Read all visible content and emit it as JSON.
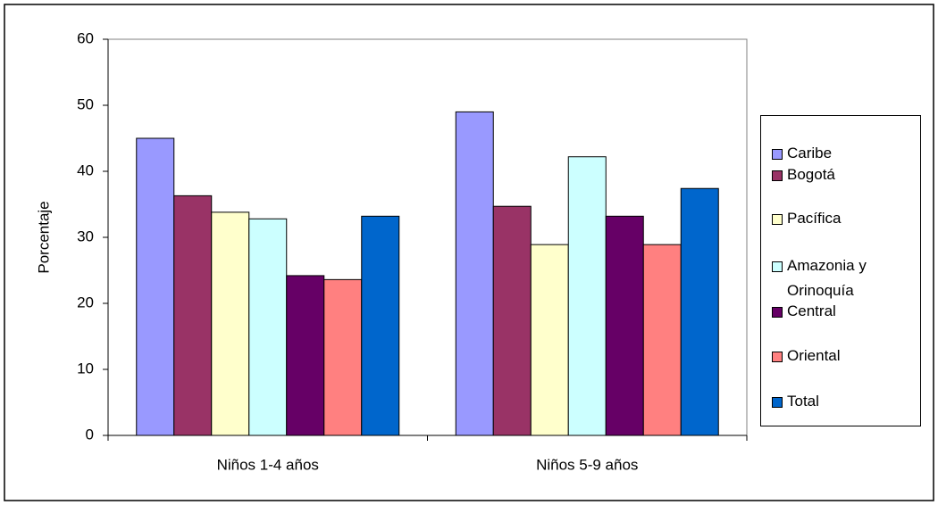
{
  "chart_data": {
    "type": "bar",
    "y_label": "Porcentaje",
    "categories": [
      "Niños 1-4 años",
      "Niños 5-9 años"
    ],
    "series": [
      {
        "name": "Caribe",
        "color": "#9999ff",
        "values": [
          45,
          49
        ]
      },
      {
        "name": "Bogotá",
        "color": "#993366",
        "values": [
          36.3,
          34.7
        ]
      },
      {
        "name": "Pacífica",
        "color": "#ffffcc",
        "values": [
          33.8,
          28.9
        ]
      },
      {
        "name": "Amazonia y Orinoquía",
        "color": "#ccffff",
        "values": [
          32.8,
          42.2
        ]
      },
      {
        "name": "Central",
        "color": "#660066",
        "values": [
          24.2,
          33.2
        ]
      },
      {
        "name": "Oriental",
        "color": "#ff8080",
        "values": [
          23.6,
          28.9
        ]
      },
      {
        "name": "Total",
        "color": "#0066cc",
        "values": [
          33.2,
          37.4
        ]
      }
    ],
    "ylim": [
      0,
      60
    ],
    "yticks": [
      0,
      10,
      20,
      30,
      40,
      50,
      60
    ],
    "grid": false
  }
}
